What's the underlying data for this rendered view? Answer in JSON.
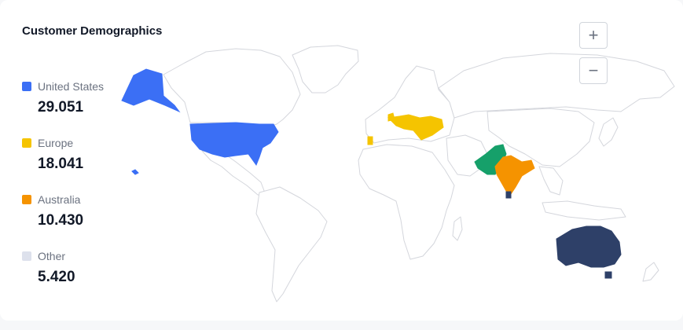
{
  "card": {
    "title": "Customer Demographics"
  },
  "legend": [
    {
      "label": "United States",
      "value": "29.051",
      "color": "#3b6ff5"
    },
    {
      "label": "Europe",
      "value": "18.041",
      "color": "#f5c400"
    },
    {
      "label": "Australia",
      "value": "10.430",
      "color": "#f59300"
    },
    {
      "label": "Other",
      "value": "5.420",
      "color": "#dde1ec"
    }
  ],
  "map_colors": {
    "land_fill": "#ffffff",
    "land_stroke": "#d4d6dc",
    "united_states": "#3b6ff5",
    "europe": "#f5c400",
    "india": "#f59300",
    "pakistan": "#16a06a",
    "australia": "#2e4068",
    "sri_lanka": "#2e4068"
  },
  "zoom": {
    "in_icon": "plus-icon",
    "out_icon": "minus-icon"
  }
}
